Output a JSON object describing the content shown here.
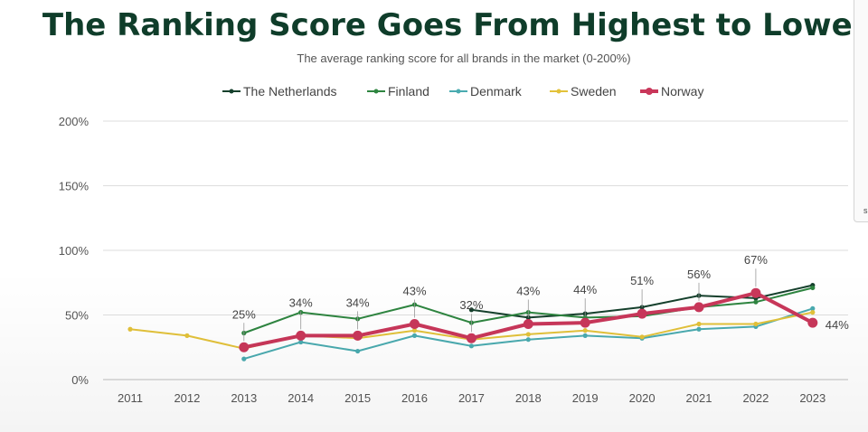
{
  "chart_data": {
    "type": "line",
    "title": "The Ranking Score Goes From Highest to Lowest",
    "subtitle": "The average ranking score for all brands in the market (0-200%)",
    "x": [
      "2011",
      "2012",
      "2013",
      "2014",
      "2015",
      "2016",
      "2017",
      "2018",
      "2019",
      "2020",
      "2021",
      "2022",
      "2023"
    ],
    "ylim": [
      0,
      200
    ],
    "yticks": [
      0,
      50,
      100,
      150,
      200
    ],
    "ytick_labels": [
      "0%",
      "50%",
      "100%",
      "150%",
      "200%"
    ],
    "grid": true,
    "legend_position": "top",
    "series": [
      {
        "name": "The Netherlands",
        "color": "#15402c",
        "values": [
          null,
          null,
          null,
          null,
          null,
          null,
          54,
          48,
          51,
          56,
          65,
          63,
          73
        ]
      },
      {
        "name": "Finland",
        "color": "#2e8540",
        "values": [
          null,
          null,
          36,
          52,
          47,
          58,
          44,
          52,
          48,
          49,
          56,
          60,
          71
        ]
      },
      {
        "name": "Denmark",
        "color": "#4aabb0",
        "values": [
          null,
          null,
          16,
          29,
          22,
          34,
          26,
          31,
          34,
          32,
          39,
          41,
          55
        ]
      },
      {
        "name": "Sweden",
        "color": "#e3c23a",
        "values": [
          39,
          34,
          24,
          34,
          32,
          38,
          31,
          35,
          38,
          33,
          43,
          43,
          52
        ]
      },
      {
        "name": "Norway",
        "color": "#c9375a",
        "values": [
          null,
          null,
          25,
          34,
          34,
          43,
          32,
          43,
          44,
          51,
          56,
          67,
          44
        ]
      }
    ],
    "annotations": [
      {
        "x": "2013",
        "y": 25,
        "label": "25%"
      },
      {
        "x": "2014",
        "y": 34,
        "label": "34%"
      },
      {
        "x": "2015",
        "y": 34,
        "label": "34%"
      },
      {
        "x": "2016",
        "y": 43,
        "label": "43%"
      },
      {
        "x": "2017",
        "y": 32,
        "label": "32%"
      },
      {
        "x": "2018",
        "y": 43,
        "label": "43%"
      },
      {
        "x": "2019",
        "y": 44,
        "label": "44%"
      },
      {
        "x": "2020",
        "y": 51,
        "label": "51%"
      },
      {
        "x": "2021",
        "y": 56,
        "label": "56%"
      },
      {
        "x": "2022",
        "y": 67,
        "label": "67%"
      },
      {
        "x": "2023",
        "y": 44,
        "label": "44%"
      }
    ]
  },
  "edge_panel": {
    "text": "s"
  }
}
